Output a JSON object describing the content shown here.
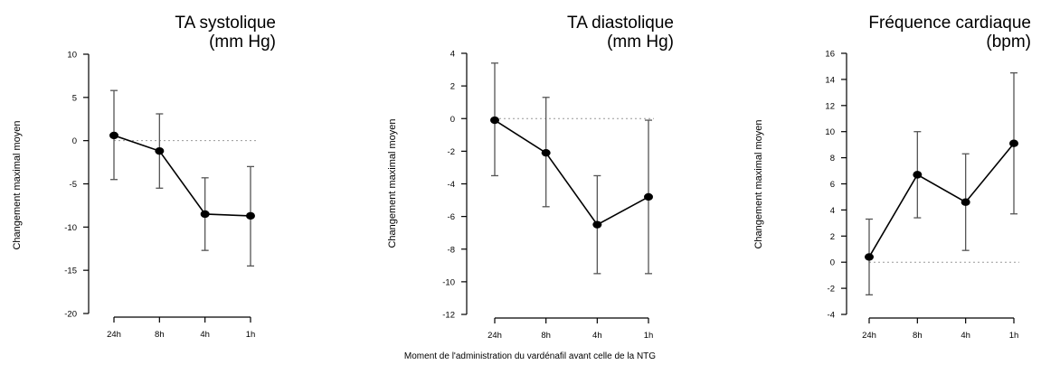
{
  "chart_data": [
    {
      "type": "line",
      "title": [
        "TA systolique",
        "(mm Hg)"
      ],
      "ylabel": "Changement maximal moyen",
      "xlabel": "",
      "categories": [
        "24h",
        "8h",
        "4h",
        "1h"
      ],
      "ylim": [
        -20,
        10
      ],
      "yticks": [
        10,
        5,
        0,
        -5,
        -10,
        -15,
        -20
      ],
      "reference_line": 0,
      "series": [
        {
          "values": [
            0.6,
            -1.2,
            -8.5,
            -8.7
          ],
          "error_low": [
            -4.5,
            -5.5,
            -12.7,
            -14.5
          ],
          "error_high": [
            5.8,
            3.1,
            -4.3,
            -3.0
          ]
        }
      ]
    },
    {
      "type": "line",
      "title": [
        "TA diastolique",
        "(mm Hg)"
      ],
      "ylabel": "Changement maximal moyen",
      "xlabel": "",
      "categories": [
        "24h",
        "8h",
        "4h",
        "1h"
      ],
      "ylim": [
        -12,
        4
      ],
      "yticks": [
        4,
        2,
        0,
        -2,
        -4,
        -6,
        -8,
        -10,
        -12
      ],
      "reference_line": 0,
      "series": [
        {
          "values": [
            -0.1,
            -2.1,
            -6.5,
            -4.8
          ],
          "error_low": [
            -3.5,
            -5.4,
            -9.5,
            -9.5
          ],
          "error_high": [
            3.4,
            1.3,
            -3.5,
            -0.1
          ]
        }
      ]
    },
    {
      "type": "line",
      "title": [
        "Fréquence cardiaque",
        "(bpm)"
      ],
      "ylabel": "Changement maximal moyen",
      "xlabel": "",
      "categories": [
        "24h",
        "8h",
        "4h",
        "1h"
      ],
      "ylim": [
        -4,
        16
      ],
      "yticks": [
        16,
        14,
        12,
        10,
        8,
        6,
        4,
        2,
        0,
        -2,
        -4
      ],
      "reference_line": 0,
      "series": [
        {
          "values": [
            0.4,
            6.7,
            4.6,
            9.1
          ],
          "error_low": [
            -2.5,
            3.4,
            0.9,
            3.7
          ],
          "error_high": [
            3.3,
            10.0,
            8.3,
            14.5
          ]
        }
      ]
    }
  ],
  "caption": "Moment de l'administration du vardénafil avant celle de la NTG"
}
